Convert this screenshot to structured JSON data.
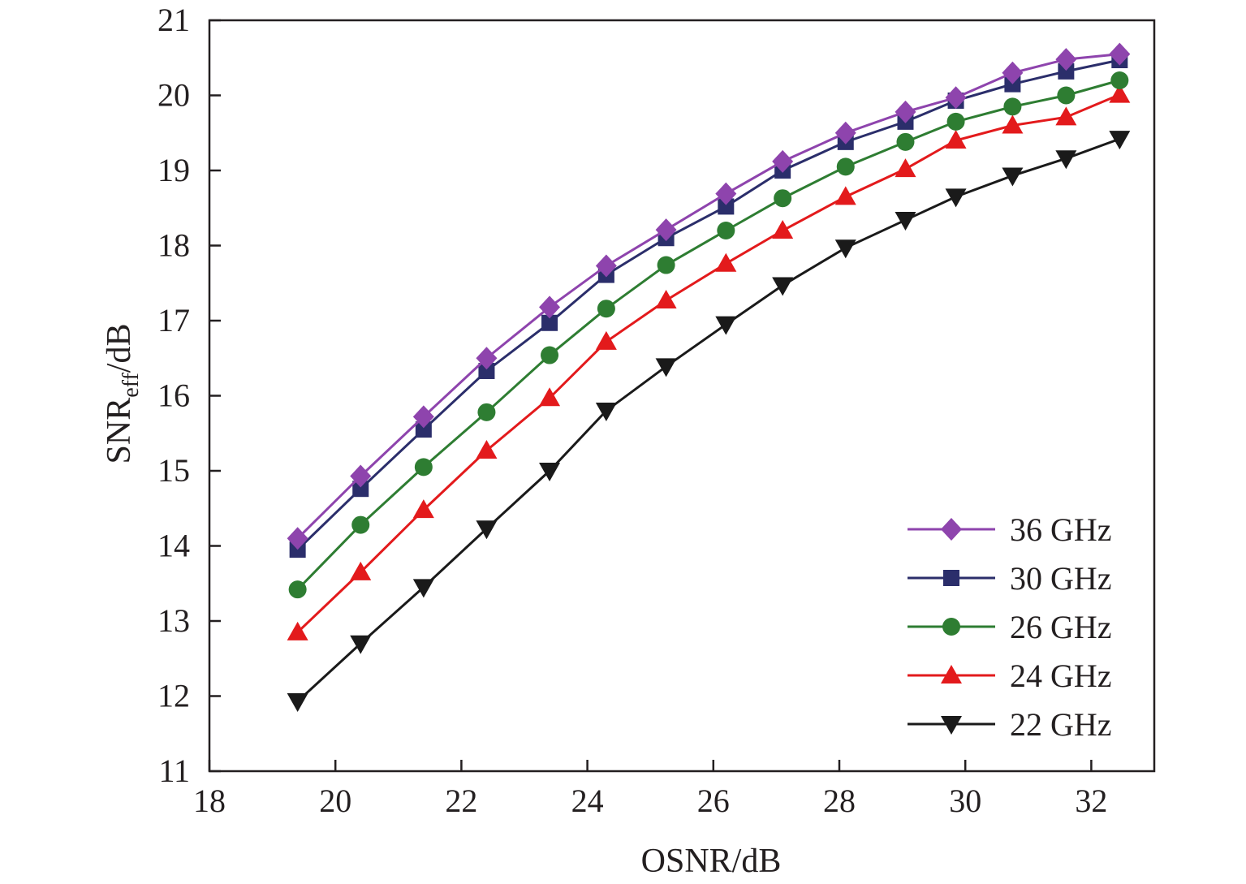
{
  "chart_data": {
    "type": "line",
    "title": "",
    "xlabel": "OSNR/dB",
    "ylabel_main": "SNR",
    "ylabel_sub": "eff",
    "ylabel_unit": "/dB",
    "xlim": [
      18,
      33
    ],
    "ylim": [
      11,
      21
    ],
    "xticks": [
      18,
      20,
      22,
      24,
      26,
      28,
      30,
      32
    ],
    "yticks": [
      11,
      12,
      13,
      14,
      15,
      16,
      17,
      18,
      19,
      20,
      21
    ],
    "grid": false,
    "legend_position": "bottom-right",
    "x": [
      19.4,
      20.4,
      21.4,
      22.4,
      23.4,
      24.3,
      25.25,
      26.2,
      27.1,
      28.1,
      29.05,
      29.85,
      30.75,
      31.6,
      32.45
    ],
    "series": [
      {
        "name": "36 GHz",
        "color": "#8e44ad",
        "marker": "diamond",
        "values": [
          14.1,
          14.93,
          15.72,
          16.5,
          17.18,
          17.73,
          18.21,
          18.69,
          19.12,
          19.5,
          19.78,
          19.97,
          20.3,
          20.48,
          20.55
        ]
      },
      {
        "name": "30 GHz",
        "color": "#2b2e6b",
        "marker": "square",
        "values": [
          13.95,
          14.76,
          15.55,
          16.33,
          16.97,
          17.61,
          18.1,
          18.52,
          19.0,
          19.38,
          19.65,
          19.93,
          20.15,
          20.32,
          20.47
        ]
      },
      {
        "name": "26 GHz",
        "color": "#2e7d32",
        "marker": "circle",
        "values": [
          13.42,
          14.28,
          15.05,
          15.78,
          16.54,
          17.16,
          17.74,
          18.2,
          18.63,
          19.05,
          19.38,
          19.65,
          19.85,
          20.0,
          20.2
        ]
      },
      {
        "name": "24 GHz",
        "color": "#e31a1c",
        "marker": "triangle-up",
        "values": [
          12.85,
          13.65,
          14.48,
          15.27,
          15.97,
          16.72,
          17.27,
          17.76,
          18.2,
          18.65,
          19.02,
          19.4,
          19.6,
          19.71,
          20.01
        ]
      },
      {
        "name": "22 GHz",
        "color": "#1a1a1a",
        "marker": "triangle-down",
        "values": [
          11.93,
          12.7,
          13.45,
          14.23,
          15.0,
          15.8,
          16.39,
          16.95,
          17.47,
          17.97,
          18.34,
          18.65,
          18.93,
          19.16,
          19.42
        ]
      }
    ]
  }
}
